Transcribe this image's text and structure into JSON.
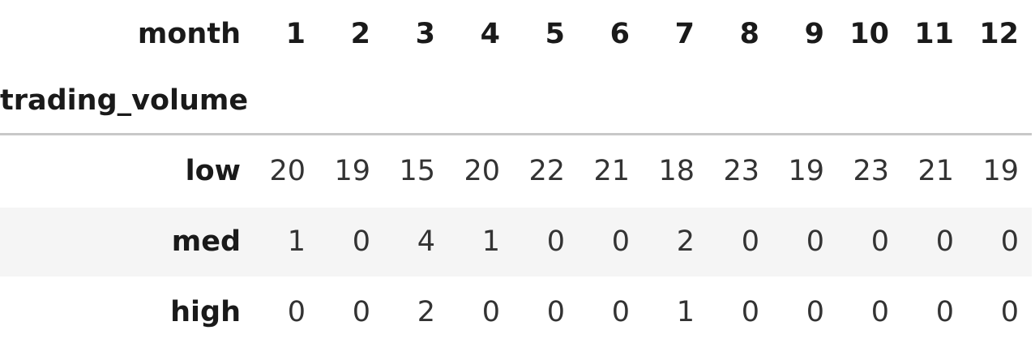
{
  "table": {
    "columns_name": "month",
    "index_name": "trading_volume",
    "columns": [
      "1",
      "2",
      "3",
      "4",
      "5",
      "6",
      "7",
      "8",
      "9",
      "10",
      "11",
      "12"
    ],
    "rows": [
      {
        "label": "low",
        "values": [
          "20",
          "19",
          "15",
          "20",
          "22",
          "21",
          "18",
          "23",
          "19",
          "23",
          "21",
          "19"
        ]
      },
      {
        "label": "med",
        "values": [
          "1",
          "0",
          "4",
          "1",
          "0",
          "0",
          "2",
          "0",
          "0",
          "0",
          "0",
          "0"
        ]
      },
      {
        "label": "high",
        "values": [
          "0",
          "0",
          "2",
          "0",
          "0",
          "0",
          "1",
          "0",
          "0",
          "0",
          "0",
          "0"
        ]
      }
    ]
  }
}
